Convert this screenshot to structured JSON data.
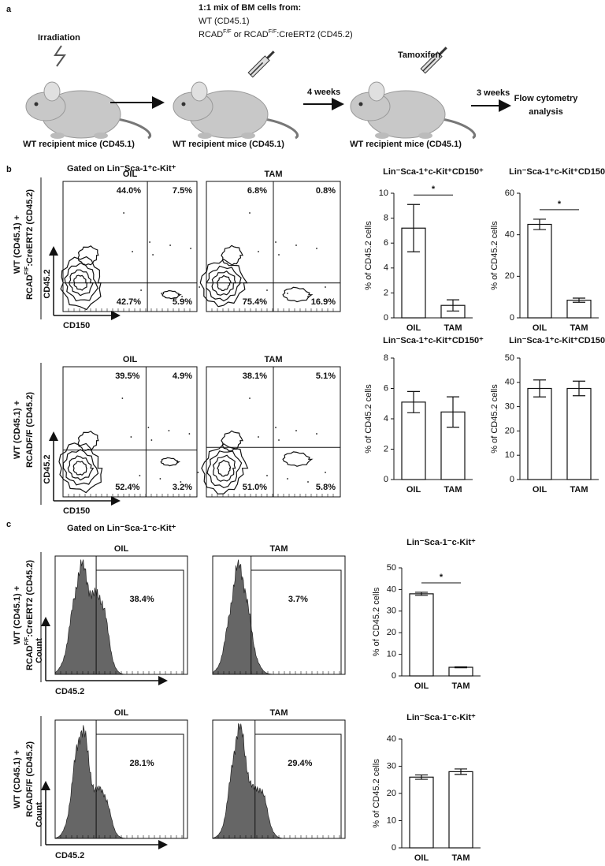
{
  "panel_a": {
    "label": "a",
    "irradiation": "Irradiation",
    "mix_title": "1:1 mix of BM cells from:",
    "mix_line1": "WT (CD45.1)",
    "mix_line2": [
      {
        "text": "RCAD"
      },
      {
        "sup": "F/F"
      },
      {
        "text": " or RCAD"
      },
      {
        "sup": "F/F"
      },
      {
        "text": ":CreERT2 (CD45.2)"
      }
    ],
    "interval1": "4 weeks",
    "tamoxifen": "Tamoxifen",
    "interval2": "3 weeks",
    "readout": [
      "Flow cytometry",
      "analysis"
    ],
    "mouse_labels": [
      "WT recipient mice (CD45.1)",
      "WT recipient mice (CD45.1)",
      "WT recipient mice (CD45.1)"
    ]
  },
  "panel_b": {
    "label": "b",
    "gate": "Gated on Lin⁻Sca-1⁺c-Kit⁺",
    "rows": [
      {
        "label_line1": "WT (CD45.1) +",
        "label_line2": [
          {
            "text": "RCAD"
          },
          {
            "sup": "F/F"
          },
          {
            "text": ":CreERT2 (CD45.2)"
          }
        ],
        "x_axis": "CD150",
        "y_axis": "CD45.2",
        "plots": [
          {
            "condition": "OIL",
            "quadrants": [
              "44.0%",
              "7.5%",
              "42.7%",
              "5.9%"
            ]
          },
          {
            "condition": "TAM",
            "quadrants": [
              "6.8%",
              "0.8%",
              "75.4%",
              "16.9%"
            ]
          }
        ]
      },
      {
        "label_line1": "WT (CD45.1) +",
        "label_line2": [
          {
            "text": "RCADF/F (CD45.2)"
          }
        ],
        "x_axis": "CD150",
        "y_axis": "CD45.2",
        "plots": [
          {
            "condition": "OIL",
            "quadrants": [
              "39.5%",
              "4.9%",
              "52.4%",
              "3.2%"
            ]
          },
          {
            "condition": "TAM",
            "quadrants": [
              "38.1%",
              "5.1%",
              "51.0%",
              "5.8%"
            ]
          }
        ]
      }
    ]
  },
  "panel_c": {
    "label": "c",
    "gate": "Gated on Lin⁻Sca-1⁻c-Kit⁺",
    "rows": [
      {
        "label_line1": "WT (CD45.1) +",
        "label_line2": [
          {
            "text": "RCAD"
          },
          {
            "sup": "F/F"
          },
          {
            "text": ":CreERT2 (CD45.2)"
          }
        ],
        "x_axis": "CD45.2",
        "y_axis": "Count",
        "plots": [
          {
            "condition": "OIL",
            "gate_percent": "38.4%"
          },
          {
            "condition": "TAM",
            "gate_percent": "3.7%"
          }
        ]
      },
      {
        "label_line1": "WT (CD45.1) +",
        "label_line2": [
          {
            "text": "RCADF/F (CD45.2)"
          }
        ],
        "x_axis": "CD45.2",
        "y_axis": "Count",
        "plots": [
          {
            "condition": "OIL",
            "gate_percent": "28.1%"
          },
          {
            "condition": "TAM",
            "gate_percent": "29.4%"
          }
        ]
      }
    ]
  },
  "chart_data": [
    {
      "type": "bar",
      "title": "Lin⁻Sca-1⁺c-Kit⁺CD150⁺",
      "y_label": "% of CD45.2 cells",
      "categories": [
        "OIL",
        "TAM"
      ],
      "values": [
        7.2,
        1.0
      ],
      "errors": [
        1.9,
        0.45
      ],
      "ylim": [
        0,
        10
      ],
      "yticks": [
        0,
        2,
        4,
        6,
        8,
        10
      ],
      "significance": "*",
      "color": "#ffffff"
    },
    {
      "type": "bar",
      "title": "Lin⁻Sca-1⁺c-Kit⁺CD150⁻",
      "y_label": "% of CD45.2 cells",
      "categories": [
        "OIL",
        "TAM"
      ],
      "values": [
        45,
        8.5
      ],
      "errors": [
        2.5,
        1
      ],
      "ylim": [
        0,
        60
      ],
      "yticks": [
        0,
        20,
        40,
        60
      ],
      "significance": "*",
      "color": "#ffffff"
    },
    {
      "type": "bar",
      "title": "Lin⁻Sca-1⁺c-Kit⁺CD150⁺",
      "y_label": "% of CD45.2 cells",
      "categories": [
        "OIL",
        "TAM"
      ],
      "values": [
        5.1,
        4.45
      ],
      "errors": [
        0.7,
        1.0
      ],
      "ylim": [
        0,
        8
      ],
      "yticks": [
        0,
        2,
        4,
        6,
        8
      ],
      "color": "#ffffff"
    },
    {
      "type": "bar",
      "title": "Lin⁻Sca-1⁺c-Kit⁺CD150⁻",
      "y_label": "% of CD45.2 cells",
      "categories": [
        "OIL",
        "TAM"
      ],
      "values": [
        37.5,
        37.5
      ],
      "errors": [
        3.5,
        3
      ],
      "ylim": [
        0,
        50
      ],
      "yticks": [
        0,
        10,
        20,
        30,
        40,
        50
      ],
      "color": "#ffffff"
    },
    {
      "type": "bar",
      "title": "Lin⁻Sca-1⁻c-Kit⁺",
      "y_label": "% of CD45.2 cells",
      "categories": [
        "OIL",
        "TAM"
      ],
      "values": [
        38,
        4
      ],
      "errors": [
        0.7,
        0.2
      ],
      "ylim": [
        0,
        50
      ],
      "yticks": [
        0,
        10,
        20,
        30,
        40,
        50
      ],
      "significance": "*",
      "color": "#ffffff"
    },
    {
      "type": "bar",
      "title": "Lin⁻Sca-1⁻c-Kit⁺",
      "y_label": "% of CD45.2 cells",
      "categories": [
        "OIL",
        "TAM"
      ],
      "values": [
        26,
        28
      ],
      "errors": [
        0.8,
        1
      ],
      "ylim": [
        0,
        40
      ],
      "yticks": [
        0,
        10,
        20,
        30,
        40
      ],
      "color": "#ffffff"
    }
  ]
}
